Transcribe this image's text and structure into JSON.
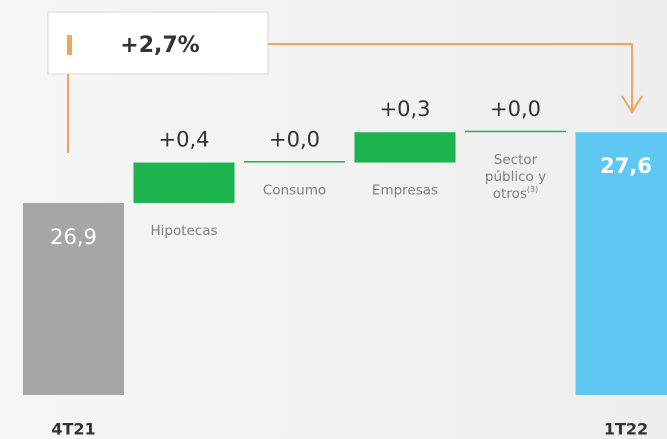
{
  "chart_data": {
    "type": "waterfall",
    "categories": [
      "4T21",
      "Hipotecas",
      "Consumo",
      "Empresas",
      "Sector público y otros",
      "1T22"
    ],
    "category_superscripts": [
      null,
      null,
      null,
      null,
      "(3)",
      null
    ],
    "values": [
      26.9,
      0.4,
      0.0,
      0.3,
      0.0,
      27.6
    ],
    "value_labels": [
      "26,9",
      "+0,4",
      "+0,0",
      "+0,3",
      "+0,0",
      "27,6"
    ],
    "kinds": [
      "total",
      "delta",
      "delta",
      "delta",
      "delta",
      "total"
    ],
    "colors": {
      "start": "#a6a6a6",
      "delta": "#1db34f",
      "end": "#5ec8f2",
      "connector": "#f0a55c"
    },
    "ylim": [
      25,
      27.8
    ],
    "annotation": "+2,7%"
  }
}
